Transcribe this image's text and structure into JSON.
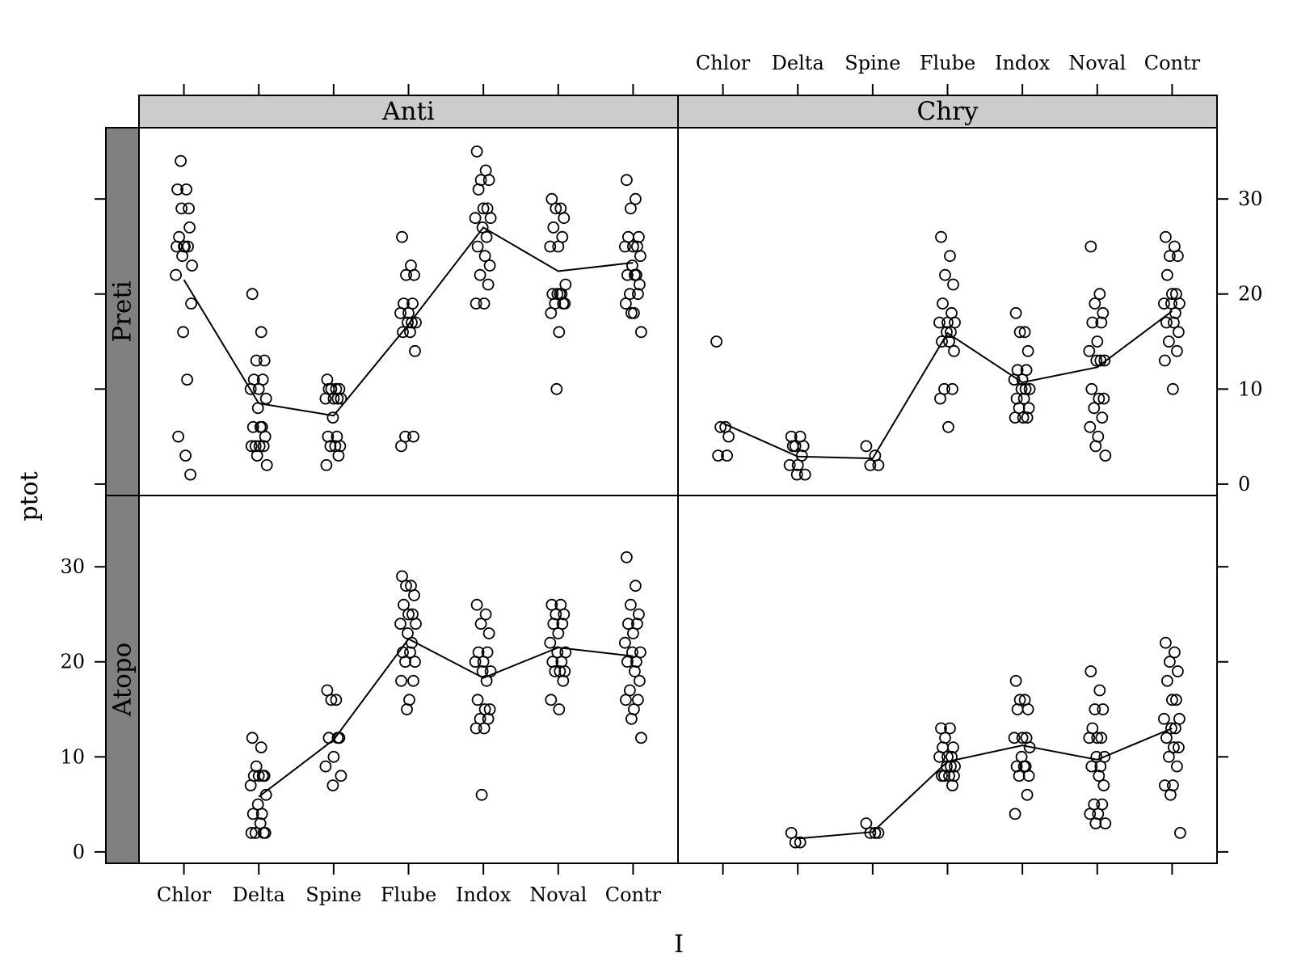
{
  "chart_data": {
    "type": "scatter",
    "title": "",
    "xlabel": "I",
    "ylabel": "ptot",
    "ylim": [
      -1.2,
      37.5
    ],
    "yticks": [
      0,
      10,
      20,
      30
    ],
    "categories": [
      "Chlor",
      "Delta",
      "Spine",
      "Flube",
      "Indox",
      "Noval",
      "Contr"
    ],
    "column_strips": [
      "Anti",
      "Chry"
    ],
    "row_strips": [
      "Preti",
      "Atopo"
    ],
    "grid": false,
    "legend": "none",
    "colors": {
      "strip_column": "#cccccc",
      "strip_row": "#808080",
      "points": "#000000",
      "line": "#000000"
    },
    "panels": [
      {
        "column": "Anti",
        "row": "Preti",
        "mean_line": [
          21.5,
          8.5,
          7.2,
          16.8,
          27.0,
          22.4,
          23.3
        ],
        "points": [
          [
            31,
            31,
            29,
            27,
            26,
            25,
            25,
            22,
            19,
            16,
            11,
            5,
            3,
            1,
            34,
            29,
            25,
            25,
            24,
            23
          ],
          [
            20,
            16,
            13,
            13,
            11,
            11,
            10,
            10,
            9,
            8,
            6,
            6,
            6,
            5,
            4,
            4,
            4,
            4,
            3,
            2
          ],
          [
            11,
            10,
            10,
            10,
            10,
            9,
            9,
            9,
            9,
            7,
            5,
            5,
            4,
            4,
            4,
            3,
            2
          ],
          [
            26,
            23,
            22,
            22,
            19,
            19,
            18,
            18,
            17,
            17,
            17,
            16,
            16,
            14,
            5,
            5,
            4
          ],
          [
            35,
            33,
            32,
            32,
            31,
            29,
            29,
            28,
            28,
            27,
            26,
            25,
            24,
            23,
            22,
            21,
            19,
            19
          ],
          [
            30,
            29,
            29,
            28,
            27,
            26,
            25,
            25,
            21,
            20,
            20,
            20,
            20,
            19,
            19,
            19,
            18,
            16,
            10
          ],
          [
            32,
            30,
            29,
            26,
            26,
            25,
            25,
            25,
            24,
            23,
            22,
            22,
            22,
            21,
            20,
            20,
            19,
            18,
            18,
            16
          ]
        ]
      },
      {
        "column": "Chry",
        "row": "Preti",
        "mean_line": [
          6.4,
          2.9,
          2.7,
          15.9,
          10.7,
          12.3,
          18.2
        ],
        "points": [
          [
            15,
            6,
            6,
            5,
            3,
            3
          ],
          [
            5,
            5,
            4,
            4,
            4,
            3,
            2,
            2,
            1,
            1
          ],
          [
            4,
            3,
            2,
            2
          ],
          [
            26,
            24,
            22,
            21,
            19,
            18,
            17,
            17,
            17,
            16,
            16,
            15,
            15,
            14,
            10,
            10,
            9,
            6
          ],
          [
            18,
            16,
            16,
            14,
            12,
            12,
            11,
            11,
            10,
            10,
            10,
            9,
            9,
            8,
            8,
            7,
            7,
            7
          ],
          [
            25,
            20,
            19,
            18,
            17,
            17,
            15,
            14,
            13,
            13,
            13,
            10,
            9,
            9,
            8,
            7,
            6,
            5,
            4,
            3
          ],
          [
            26,
            25,
            24,
            24,
            22,
            20,
            20,
            19,
            19,
            19,
            18,
            17,
            17,
            16,
            15,
            14,
            13,
            10
          ]
        ]
      },
      {
        "column": "Anti",
        "row": "Atopo",
        "mean_line": [
          null,
          5.8,
          11.8,
          22.4,
          18.3,
          21.5,
          20.6
        ],
        "points": [
          [],
          [
            12,
            11,
            9,
            8,
            8,
            8,
            8,
            7,
            6,
            5,
            4,
            4,
            3,
            2,
            2,
            2,
            2
          ],
          [
            17,
            16,
            16,
            12,
            12,
            12,
            10,
            9,
            8,
            7
          ],
          [
            29,
            28,
            28,
            27,
            26,
            25,
            25,
            24,
            24,
            23,
            22,
            21,
            21,
            20,
            20,
            18,
            18,
            16,
            15
          ],
          [
            26,
            25,
            24,
            23,
            21,
            21,
            20,
            20,
            19,
            19,
            18,
            16,
            15,
            15,
            14,
            14,
            13,
            13,
            6
          ],
          [
            26,
            26,
            25,
            25,
            24,
            24,
            23,
            22,
            21,
            21,
            20,
            20,
            19,
            19,
            19,
            18,
            16,
            15
          ],
          [
            31,
            28,
            26,
            25,
            24,
            24,
            23,
            22,
            21,
            21,
            20,
            20,
            19,
            18,
            17,
            16,
            16,
            15,
            14,
            12
          ]
        ]
      },
      {
        "column": "Chry",
        "row": "Atopo",
        "mean_line": [
          null,
          1.4,
          2.1,
          9.5,
          11.2,
          9.7,
          13.0
        ],
        "points": [
          [],
          [
            2,
            1,
            1
          ],
          [
            3,
            2,
            2,
            2
          ],
          [
            13,
            13,
            12,
            11,
            11,
            10,
            10,
            10,
            9,
            9,
            9,
            8,
            8,
            8,
            8,
            7
          ],
          [
            18,
            16,
            16,
            15,
            15,
            12,
            12,
            12,
            11,
            10,
            9,
            9,
            9,
            8,
            8,
            6,
            4
          ],
          [
            19,
            17,
            15,
            15,
            13,
            12,
            12,
            12,
            10,
            10,
            9,
            9,
            8,
            7,
            5,
            5,
            4,
            4,
            3,
            3
          ],
          [
            22,
            21,
            20,
            19,
            18,
            16,
            16,
            14,
            14,
            13,
            13,
            12,
            11,
            11,
            10,
            9,
            7,
            7,
            6,
            2
          ]
        ]
      }
    ]
  }
}
